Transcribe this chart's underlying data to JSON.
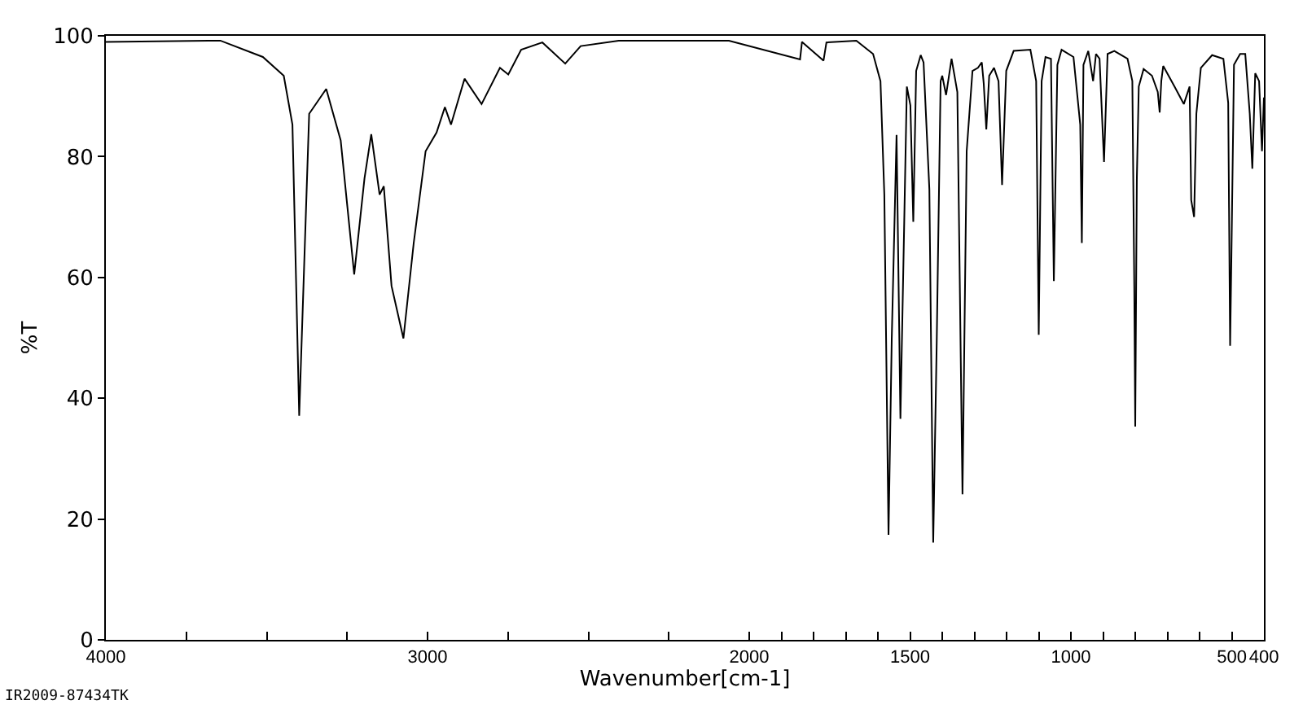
{
  "chart_data": {
    "type": "line",
    "xlabel": "Wavenumber[cm-1]",
    "ylabel": "%T",
    "annotations": [
      "IR2009-87434TK"
    ],
    "xlim": [
      4000,
      400
    ],
    "xticks": [
      4000,
      {
        "value": 3750,
        "label": null
      },
      {
        "value": 3500,
        "label": null
      },
      {
        "value": 3250,
        "label": null
      },
      3000,
      {
        "value": 2750,
        "label": null
      },
      {
        "value": 2500,
        "label": null
      },
      {
        "value": 2250,
        "label": null
      },
      2000,
      {
        "value": 1900,
        "label": null
      },
      {
        "value": 1800,
        "label": null
      },
      {
        "value": 1700,
        "label": null
      },
      {
        "value": 1600,
        "label": null
      },
      1500,
      {
        "value": 1400,
        "label": null
      },
      {
        "value": 1300,
        "label": null
      },
      {
        "value": 1200,
        "label": null
      },
      {
        "value": 1100,
        "label": null
      },
      1000,
      {
        "value": 900,
        "label": null
      },
      {
        "value": 800,
        "label": null
      },
      {
        "value": 700,
        "label": null
      },
      {
        "value": 600,
        "label": null
      },
      500,
      400
    ],
    "ylim": [
      0,
      100
    ],
    "yticks": [
      0,
      20,
      40,
      60,
      80,
      100
    ],
    "marker": "none",
    "line_style": "solid",
    "series": [
      {
        "color": "#000000",
        "x": [
          4000,
          3644,
          3512,
          3447,
          3420,
          3399,
          3368,
          3315,
          3270,
          3228,
          3196,
          3175,
          3149,
          3136,
          3112,
          3075,
          3043,
          3006,
          2972,
          2946,
          2927,
          2885,
          2832,
          2775,
          2749,
          2709,
          2643,
          2572,
          2524,
          2406,
          2063,
          1842,
          1836,
          1769,
          1760,
          1667,
          1615,
          1592,
          1580,
          1567,
          1557,
          1542,
          1530,
          1510,
          1499,
          1490,
          1481,
          1467,
          1458,
          1440,
          1428,
          1417,
          1405,
          1400,
          1388,
          1371,
          1353,
          1337,
          1324,
          1306,
          1289,
          1277,
          1271,
          1263,
          1254,
          1239,
          1225,
          1214,
          1201,
          1178,
          1126,
          1108,
          1100,
          1091,
          1079,
          1062,
          1053,
          1042,
          1029,
          992,
          971,
          966,
          961,
          946,
          931,
          922,
          911,
          897,
          886,
          865,
          824,
          809,
          803,
          800,
          795,
          789,
          774,
          748,
          730,
          724,
          719,
          713,
          678,
          649,
          631,
          626,
          617,
          610,
          596,
          561,
          526,
          511,
          505,
          500,
          493,
          474,
          458,
          444,
          436,
          427,
          415,
          406,
          400
        ],
        "values": [
          99,
          99.2,
          96.5,
          93.4,
          85.3,
          37.1,
          87.1,
          91.2,
          82.7,
          60.5,
          76.4,
          83.7,
          73.7,
          75.1,
          58.6,
          49.9,
          65.7,
          80.9,
          84.0,
          88.2,
          85.3,
          92.9,
          88.7,
          94.7,
          93.6,
          97.7,
          98.9,
          95.4,
          98.3,
          99.2,
          99.2,
          96.1,
          99,
          95.9,
          98.9,
          99.2,
          97.0,
          92.5,
          73.7,
          17.4,
          49.6,
          83.6,
          36.6,
          91.6,
          88.5,
          69.2,
          94.2,
          96.8,
          95.6,
          74.6,
          16.1,
          49.6,
          92.5,
          93.4,
          90.2,
          96.2,
          90.7,
          24.1,
          80.9,
          94.2,
          94.7,
          95.6,
          92.1,
          84.5,
          93.4,
          94.7,
          92.5,
          75.3,
          94.2,
          97.5,
          97.7,
          92.5,
          50.5,
          92.5,
          96.5,
          96.2,
          59.4,
          95.2,
          97.7,
          96.5,
          85.3,
          65.7,
          95.2,
          97.5,
          92.5,
          97,
          96.2,
          79.1,
          97,
          97.5,
          96.2,
          92.5,
          58.6,
          35.3,
          76.4,
          91.6,
          94.5,
          93.4,
          90.7,
          87.3,
          92.5,
          95.0,
          91.6,
          88.7,
          91.6,
          72.8,
          70.0,
          87.1,
          94.7,
          96.8,
          96.2,
          88.9,
          48.7,
          67.5,
          95.2,
          97,
          97,
          87.1,
          78.0,
          93.8,
          92.5,
          80.9,
          89.8
        ]
      }
    ]
  }
}
